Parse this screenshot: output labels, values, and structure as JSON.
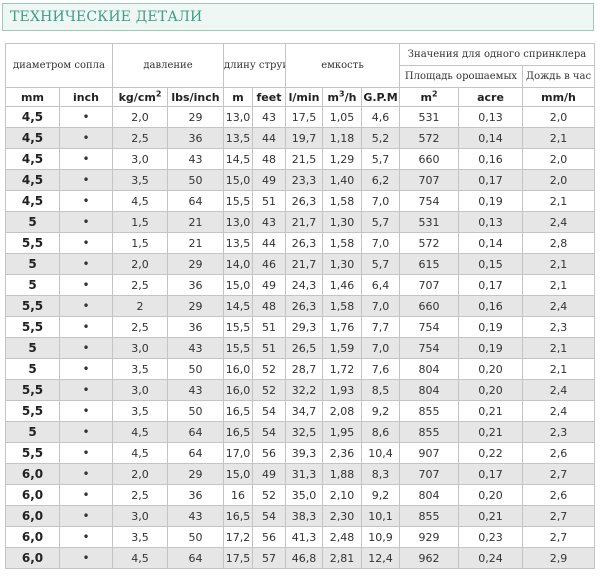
{
  "title": "ТЕХНИЧЕСКИЕ ДЕТАЛИ",
  "headers": {
    "nozzle": "диаметром сопла",
    "pressure": "давление",
    "throw": "длину струи",
    "capacity": "емкость",
    "per_sprinkler": "Значения для одного спринклера",
    "area": "Площадь орошаемых",
    "rain": "Дождь в час"
  },
  "units": {
    "mm": "mm",
    "inch": "inch",
    "kgcm_base": "kg/cm",
    "kgcm_sup": "2",
    "lbs": "lbs/inch",
    "m": "m",
    "feet": "feet",
    "lmin": "l/min",
    "m3h_base": "m",
    "m3h_sup": "3",
    "m3h_tail": "/h",
    "gpm": "G.P.M",
    "m2_base": "m",
    "m2_sup": "2",
    "acre": "acre",
    "mmh": "mm/h"
  },
  "rows": [
    [
      "4,5",
      "•",
      "2,0",
      "29",
      "13,0",
      "43",
      "17,5",
      "1,05",
      "4,6",
      "531",
      "0,13",
      "2,0"
    ],
    [
      "4,5",
      "•",
      "2,5",
      "36",
      "13,5",
      "44",
      "19,7",
      "1,18",
      "5,2",
      "572",
      "0,14",
      "2,1"
    ],
    [
      "4,5",
      "•",
      "3,0",
      "43",
      "14,5",
      "48",
      "21,5",
      "1,29",
      "5,7",
      "660",
      "0,16",
      "2,0"
    ],
    [
      "4,5",
      "•",
      "3,5",
      "50",
      "15,0",
      "49",
      "23,3",
      "1,40",
      "6,2",
      "707",
      "0,17",
      "2,0"
    ],
    [
      "4,5",
      "•",
      "4,5",
      "64",
      "15,5",
      "51",
      "26,3",
      "1,58",
      "7,0",
      "754",
      "0,19",
      "2,1"
    ],
    [
      "5",
      "•",
      "1,5",
      "21",
      "13,0",
      "43",
      "21,7",
      "1,30",
      "5,7",
      "531",
      "0,13",
      "2,4"
    ],
    [
      "5,5",
      "•",
      "1,5",
      "21",
      "13,5",
      "44",
      "26,3",
      "1,58",
      "7,0",
      "572",
      "0,14",
      "2,8"
    ],
    [
      "5",
      "•",
      "2,0",
      "29",
      "14,0",
      "46",
      "21,7",
      "1,30",
      "5,7",
      "615",
      "0,15",
      "2,1"
    ],
    [
      "5",
      "•",
      "2,5",
      "36",
      "15,0",
      "49",
      "24,3",
      "1,46",
      "6,4",
      "707",
      "0,17",
      "2,1"
    ],
    [
      "5,5",
      "•",
      "2",
      "29",
      "14,5",
      "48",
      "26,3",
      "1,58",
      "7,0",
      "660",
      "0,16",
      "2,4"
    ],
    [
      "5,5",
      "•",
      "2,5",
      "36",
      "15,5",
      "51",
      "29,3",
      "1,76",
      "7,7",
      "754",
      "0,19",
      "2,3"
    ],
    [
      "5",
      "•",
      "3,0",
      "43",
      "15,5",
      "51",
      "26,5",
      "1,59",
      "7,0",
      "754",
      "0,19",
      "2,1"
    ],
    [
      "5",
      "•",
      "3,5",
      "50",
      "16,0",
      "52",
      "28,7",
      "1,72",
      "7,6",
      "804",
      "0,20",
      "2,1"
    ],
    [
      "5,5",
      "•",
      "3,0",
      "43",
      "16,0",
      "52",
      "32,2",
      "1,93",
      "8,5",
      "804",
      "0,20",
      "2,4"
    ],
    [
      "5,5",
      "•",
      "3,5",
      "50",
      "16,5",
      "54",
      "34,7",
      "2,08",
      "9,2",
      "855",
      "0,21",
      "2,4"
    ],
    [
      "5",
      "•",
      "4,5",
      "64",
      "16,5",
      "54",
      "32,5",
      "1,95",
      "8,6",
      "855",
      "0,21",
      "2,3"
    ],
    [
      "5,5",
      "•",
      "4,5",
      "64",
      "17,0",
      "56",
      "39,3",
      "2,36",
      "10,4",
      "907",
      "0,22",
      "2,6"
    ],
    [
      "6,0",
      "•",
      "2,0",
      "29",
      "15,0",
      "49",
      "31,3",
      "1,88",
      "8,3",
      "707",
      "0,17",
      "2,7"
    ],
    [
      "6,0",
      "•",
      "2,5",
      "36",
      "16",
      "52",
      "35,0",
      "2,10",
      "9,2",
      "804",
      "0,20",
      "2,6"
    ],
    [
      "6,0",
      "•",
      "3,0",
      "43",
      "16,5",
      "54",
      "38,3",
      "2,30",
      "10,1",
      "855",
      "0,21",
      "2,7"
    ],
    [
      "6,0",
      "•",
      "3,5",
      "50",
      "17,2",
      "56",
      "41,3",
      "2,48",
      "10,9",
      "929",
      "0,23",
      "2,7"
    ],
    [
      "6,0",
      "•",
      "4,5",
      "64",
      "17,5",
      "57",
      "46,8",
      "2,81",
      "12,4",
      "962",
      "0,24",
      "2,9"
    ]
  ]
}
